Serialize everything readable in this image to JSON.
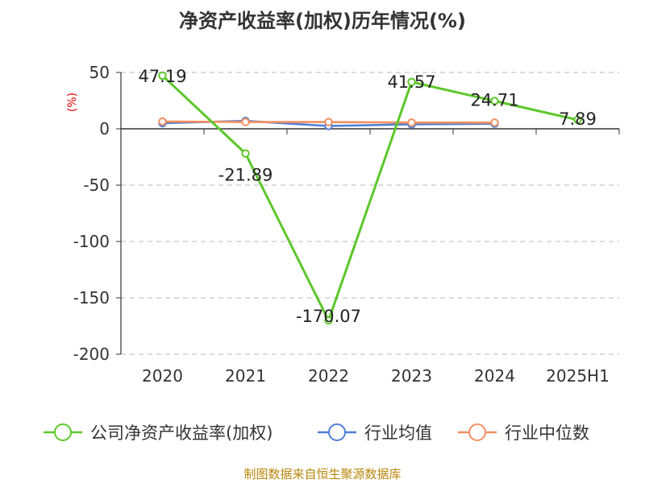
{
  "chart_data": {
    "type": "line",
    "title": "净资产收益率(加权)历年情况(%)",
    "unit_label": "(%)",
    "categories": [
      "2020",
      "2021",
      "2022",
      "2023",
      "2024",
      "2025H1"
    ],
    "ylim": [
      -200,
      50
    ],
    "yticks": [
      50,
      0,
      -50,
      -100,
      -150,
      -200
    ],
    "grid": true,
    "legend_position": "bottom",
    "series": [
      {
        "name": "公司净资产收益率(加权)",
        "color": "#5cc72a",
        "values": [
          47.19,
          -21.89,
          -170.07,
          41.57,
          24.71,
          7.89
        ],
        "labels": [
          "47.19",
          "-21.89",
          "-170.07",
          "41.57",
          "24.71",
          "7.89"
        ]
      },
      {
        "name": "行业均值",
        "color": "#4f7fd6",
        "values": [
          5.0,
          7.0,
          2.5,
          4.0,
          4.5,
          null
        ]
      },
      {
        "name": "行业中位数",
        "color": "#f39060",
        "values": [
          6.5,
          6.0,
          6.0,
          5.5,
          5.5,
          null
        ]
      }
    ]
  },
  "source": "制图数据来自恒生聚源数据库"
}
